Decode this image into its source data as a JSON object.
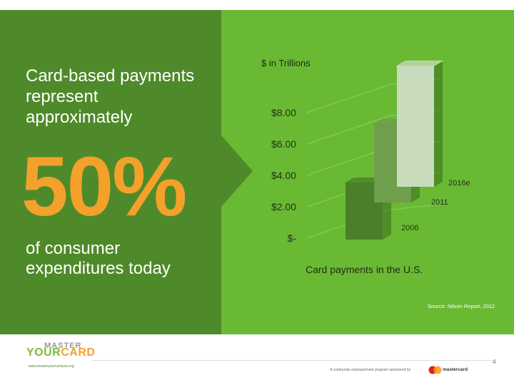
{
  "left": {
    "intro": "Card-based payments represent approximately",
    "big_percent": "50%",
    "outro": "of consumer expenditures today"
  },
  "chart_data": {
    "type": "bar",
    "title": "",
    "unit_label": "$ in Trillions",
    "xlabel": "Card payments in the U.S.",
    "categories": [
      "2006",
      "2011",
      "2016e"
    ],
    "values": [
      3.6,
      5.0,
      7.7
    ],
    "y_ticks": [
      "$-",
      "$2.00",
      "$4.00",
      "$6.00",
      "$8.00"
    ],
    "ylim": [
      0,
      8
    ],
    "grid": true,
    "bar_colors": [
      "#4b7f29",
      "#6f9e4c",
      "#c8dbbd"
    ],
    "source": "Source: Nilson Report, 2012"
  },
  "footer": {
    "logo_top": "MASTER",
    "logo_your": "YOUR",
    "logo_card": "CARD",
    "url": "www.masteryourcardusa.org",
    "page_number": "4",
    "sponsor_text": "A community empowerment program sponsored by",
    "sponsor_name": "mastercard"
  }
}
